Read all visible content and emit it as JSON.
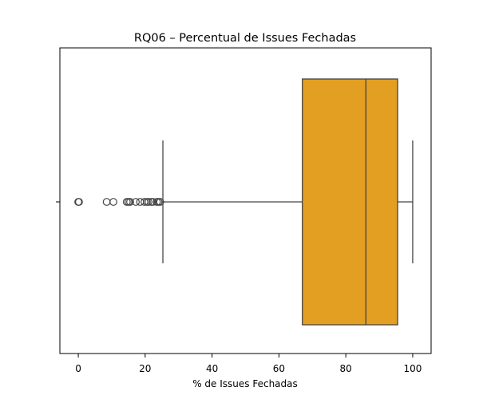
{
  "chart_data": {
    "type": "boxplot",
    "orientation": "horizontal",
    "title": "RQ06 – Percentual de Issues Fechadas",
    "xlabel": "% de Issues Fechadas",
    "ylabel": "",
    "xlim": [
      -5.5,
      105.5
    ],
    "xticks": [
      0,
      20,
      40,
      60,
      80,
      100
    ],
    "xtick_labels": [
      "0",
      "20",
      "40",
      "60",
      "80",
      "100"
    ],
    "box_color": "#e39f22",
    "line_color": "#444444",
    "box": {
      "whisker_low": 25.3,
      "q1": 67.0,
      "median": 86.0,
      "q3": 95.5,
      "whisker_high": 100.0
    },
    "outliers": [
      0,
      0.2,
      8.5,
      10.5,
      14.5,
      15.0,
      15.5,
      17.2,
      18.5,
      19.8,
      20.5,
      21.0,
      21.8,
      22.3,
      23.5,
      24.0,
      24.5
    ]
  }
}
